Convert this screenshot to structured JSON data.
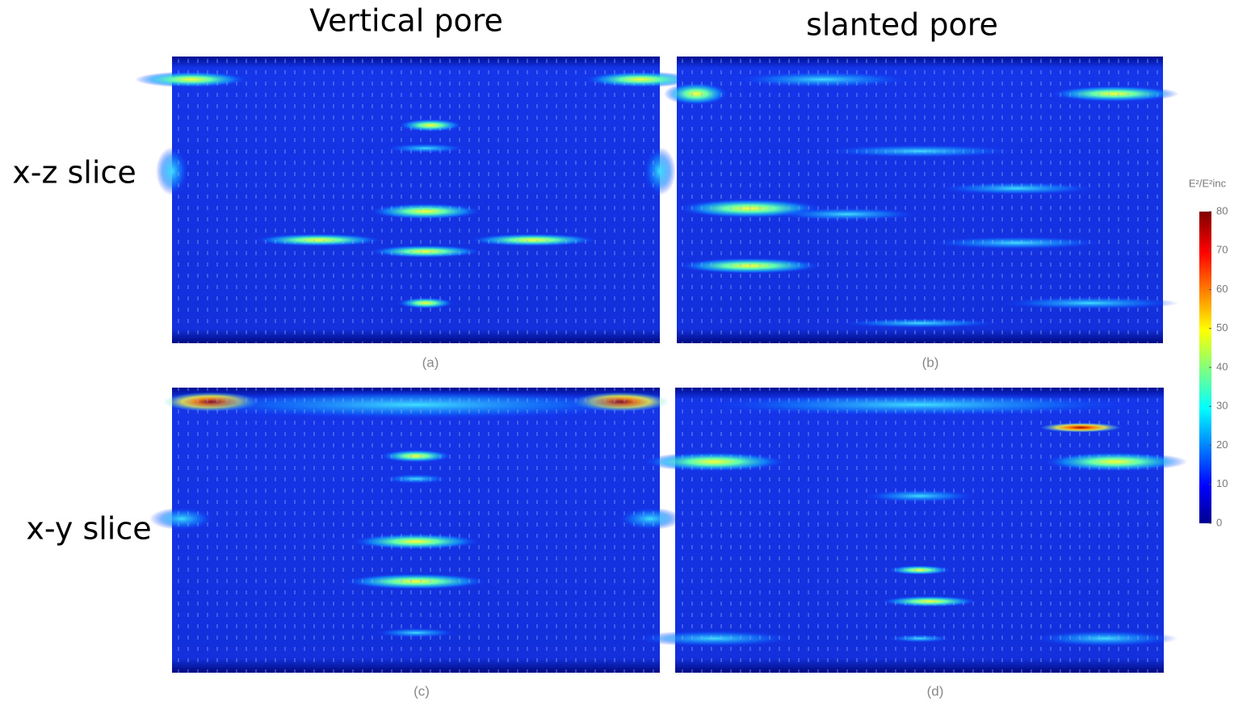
{
  "columns": [
    "Vertical pore",
    "slanted pore"
  ],
  "rows": [
    "x-z slice",
    "x-y slice"
  ],
  "panels": [
    "(a)",
    "(b)",
    "(c)",
    "(d)"
  ],
  "colorbar": {
    "label": "E²/E²inc",
    "lim": [
      0,
      80
    ],
    "ticks": [
      0,
      10,
      20,
      30,
      40,
      50,
      60,
      70,
      80
    ]
  }
}
